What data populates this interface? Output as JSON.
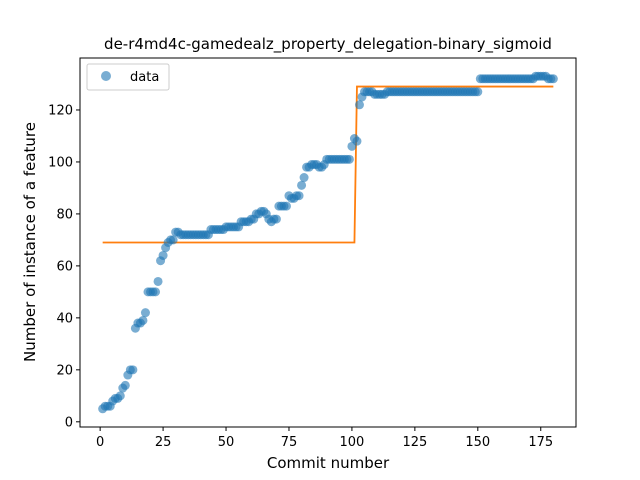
{
  "chart_data": {
    "type": "scatter",
    "title": "de-r4md4c-gamedealz_property_delegation-binary_sigmoid",
    "xlabel": "Commit number",
    "ylabel": "Number of instance of a feature",
    "xlim": [
      -8,
      189
    ],
    "ylim": [
      -2,
      140
    ],
    "xticks": [
      0,
      25,
      50,
      75,
      100,
      125,
      150,
      175
    ],
    "yticks": [
      0,
      20,
      40,
      60,
      80,
      100,
      120
    ],
    "grid": false,
    "legend": {
      "position": "top-left",
      "entries": [
        "data"
      ]
    },
    "colors": {
      "data": "#1f77b4",
      "fit": "#ff7f0e"
    },
    "series": [
      {
        "name": "data",
        "kind": "scatter",
        "x": [
          1,
          2,
          3,
          4,
          5,
          6,
          7,
          8,
          9,
          10,
          11,
          12,
          13,
          14,
          15,
          16,
          17,
          18,
          19,
          20,
          21,
          22,
          23,
          24,
          25,
          26,
          27,
          28,
          29,
          30,
          31,
          32,
          33,
          34,
          35,
          36,
          37,
          38,
          39,
          40,
          41,
          42,
          43,
          44,
          45,
          46,
          47,
          48,
          49,
          50,
          51,
          52,
          53,
          54,
          55,
          56,
          57,
          58,
          59,
          60,
          61,
          62,
          63,
          64,
          65,
          66,
          67,
          68,
          69,
          70,
          71,
          72,
          73,
          74,
          75,
          76,
          77,
          78,
          79,
          80,
          81,
          82,
          83,
          84,
          85,
          86,
          87,
          88,
          89,
          90,
          91,
          92,
          93,
          94,
          95,
          96,
          97,
          98,
          99,
          100,
          101,
          102,
          103,
          104,
          105,
          106,
          107,
          108,
          109,
          110,
          111,
          112,
          113,
          114,
          115,
          116,
          117,
          118,
          119,
          120,
          121,
          122,
          123,
          124,
          125,
          126,
          127,
          128,
          129,
          130,
          131,
          132,
          133,
          134,
          135,
          136,
          137,
          138,
          139,
          140,
          141,
          142,
          143,
          144,
          145,
          146,
          147,
          148,
          149,
          150,
          151,
          152,
          153,
          154,
          155,
          156,
          157,
          158,
          159,
          160,
          161,
          162,
          163,
          164,
          165,
          166,
          167,
          168,
          169,
          170,
          171,
          172,
          173,
          174,
          175,
          176,
          177,
          178,
          179,
          180
        ],
        "y": [
          5,
          6,
          6,
          6,
          8,
          9,
          9,
          10,
          13,
          14,
          18,
          20,
          20,
          36,
          38,
          38,
          39,
          42,
          50,
          50,
          50,
          50,
          54,
          62,
          64,
          67,
          69,
          70,
          70,
          73,
          73,
          72,
          72,
          72,
          72,
          72,
          72,
          72,
          72,
          72,
          72,
          72,
          72,
          74,
          74,
          74,
          74,
          74,
          74,
          75,
          75,
          75,
          75,
          75,
          75,
          77,
          77,
          77,
          77,
          78,
          78,
          80,
          80,
          81,
          81,
          80,
          78,
          77,
          78,
          78,
          83,
          83,
          83,
          83,
          87,
          86,
          86,
          87,
          87,
          91,
          94,
          98,
          98,
          99,
          99,
          99,
          98,
          98,
          99,
          101,
          101,
          101,
          101,
          101,
          101,
          101,
          101,
          101,
          101,
          106,
          109,
          108,
          122,
          125,
          127,
          127,
          127,
          127,
          126,
          126,
          126,
          126,
          126,
          127,
          127,
          127,
          127,
          127,
          127,
          127,
          127,
          127,
          127,
          127,
          127,
          127,
          127,
          127,
          127,
          127,
          127,
          127,
          127,
          127,
          127,
          127,
          127,
          127,
          127,
          127,
          127,
          127,
          127,
          127,
          127,
          127,
          127,
          127,
          127,
          127,
          132,
          132,
          132,
          132,
          132,
          132,
          132,
          132,
          132,
          132,
          132,
          132,
          132,
          132,
          132,
          132,
          132,
          132,
          132,
          132,
          132,
          132,
          133,
          133,
          133,
          133,
          133,
          132,
          132,
          132
        ]
      },
      {
        "name": "",
        "kind": "line",
        "x": [
          1,
          101,
          102,
          180
        ],
        "y": [
          69,
          69,
          129,
          129
        ]
      }
    ]
  }
}
